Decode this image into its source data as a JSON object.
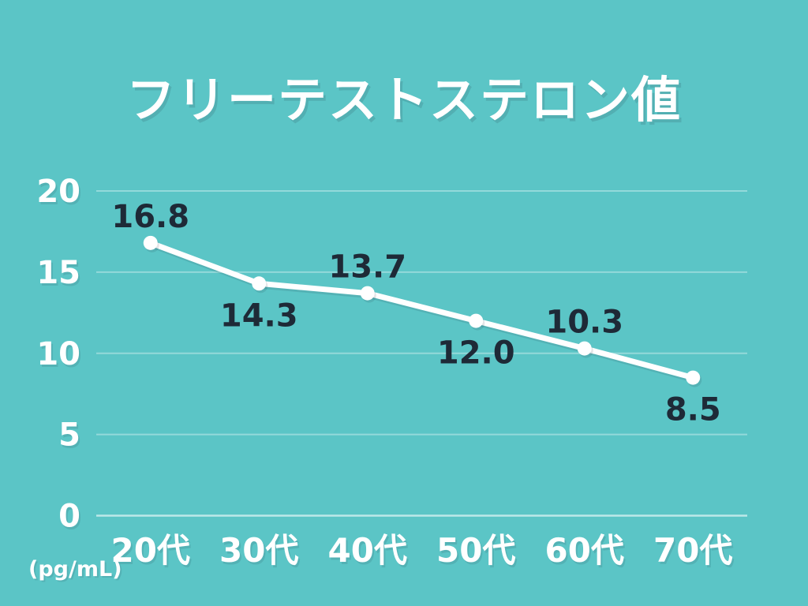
{
  "chart_data": {
    "type": "line",
    "title": "フリーテストステロン値",
    "unit_label": "(pg/mL)",
    "categories": [
      "20代",
      "30代",
      "40代",
      "50代",
      "60代",
      "70代"
    ],
    "values": [
      16.8,
      14.3,
      13.7,
      12.0,
      10.3,
      8.5
    ],
    "value_labels": [
      "16.8",
      "14.3",
      "13.7",
      "12.0",
      "10.3",
      "8.5"
    ],
    "value_label_positions": [
      "above",
      "below",
      "above",
      "below",
      "above",
      "below"
    ],
    "y_ticks": [
      0,
      5,
      10,
      15,
      20
    ],
    "y_tick_labels": [
      "0",
      "5",
      "10",
      "15",
      "20"
    ],
    "ylim": [
      0,
      20
    ],
    "xlabel": "",
    "ylabel": "(pg/mL)",
    "grid": true,
    "legend_position": "none",
    "colors": {
      "background": "#5bc5c6",
      "line": "#ffffff",
      "marker": "#ffffff",
      "gridline": "rgba(255,255,255,0.35)",
      "baseline": "rgba(255,255,255,0.6)",
      "axis_text": "#ffffff",
      "data_label": "#1e2a37",
      "title_text": "#ffffff"
    }
  }
}
